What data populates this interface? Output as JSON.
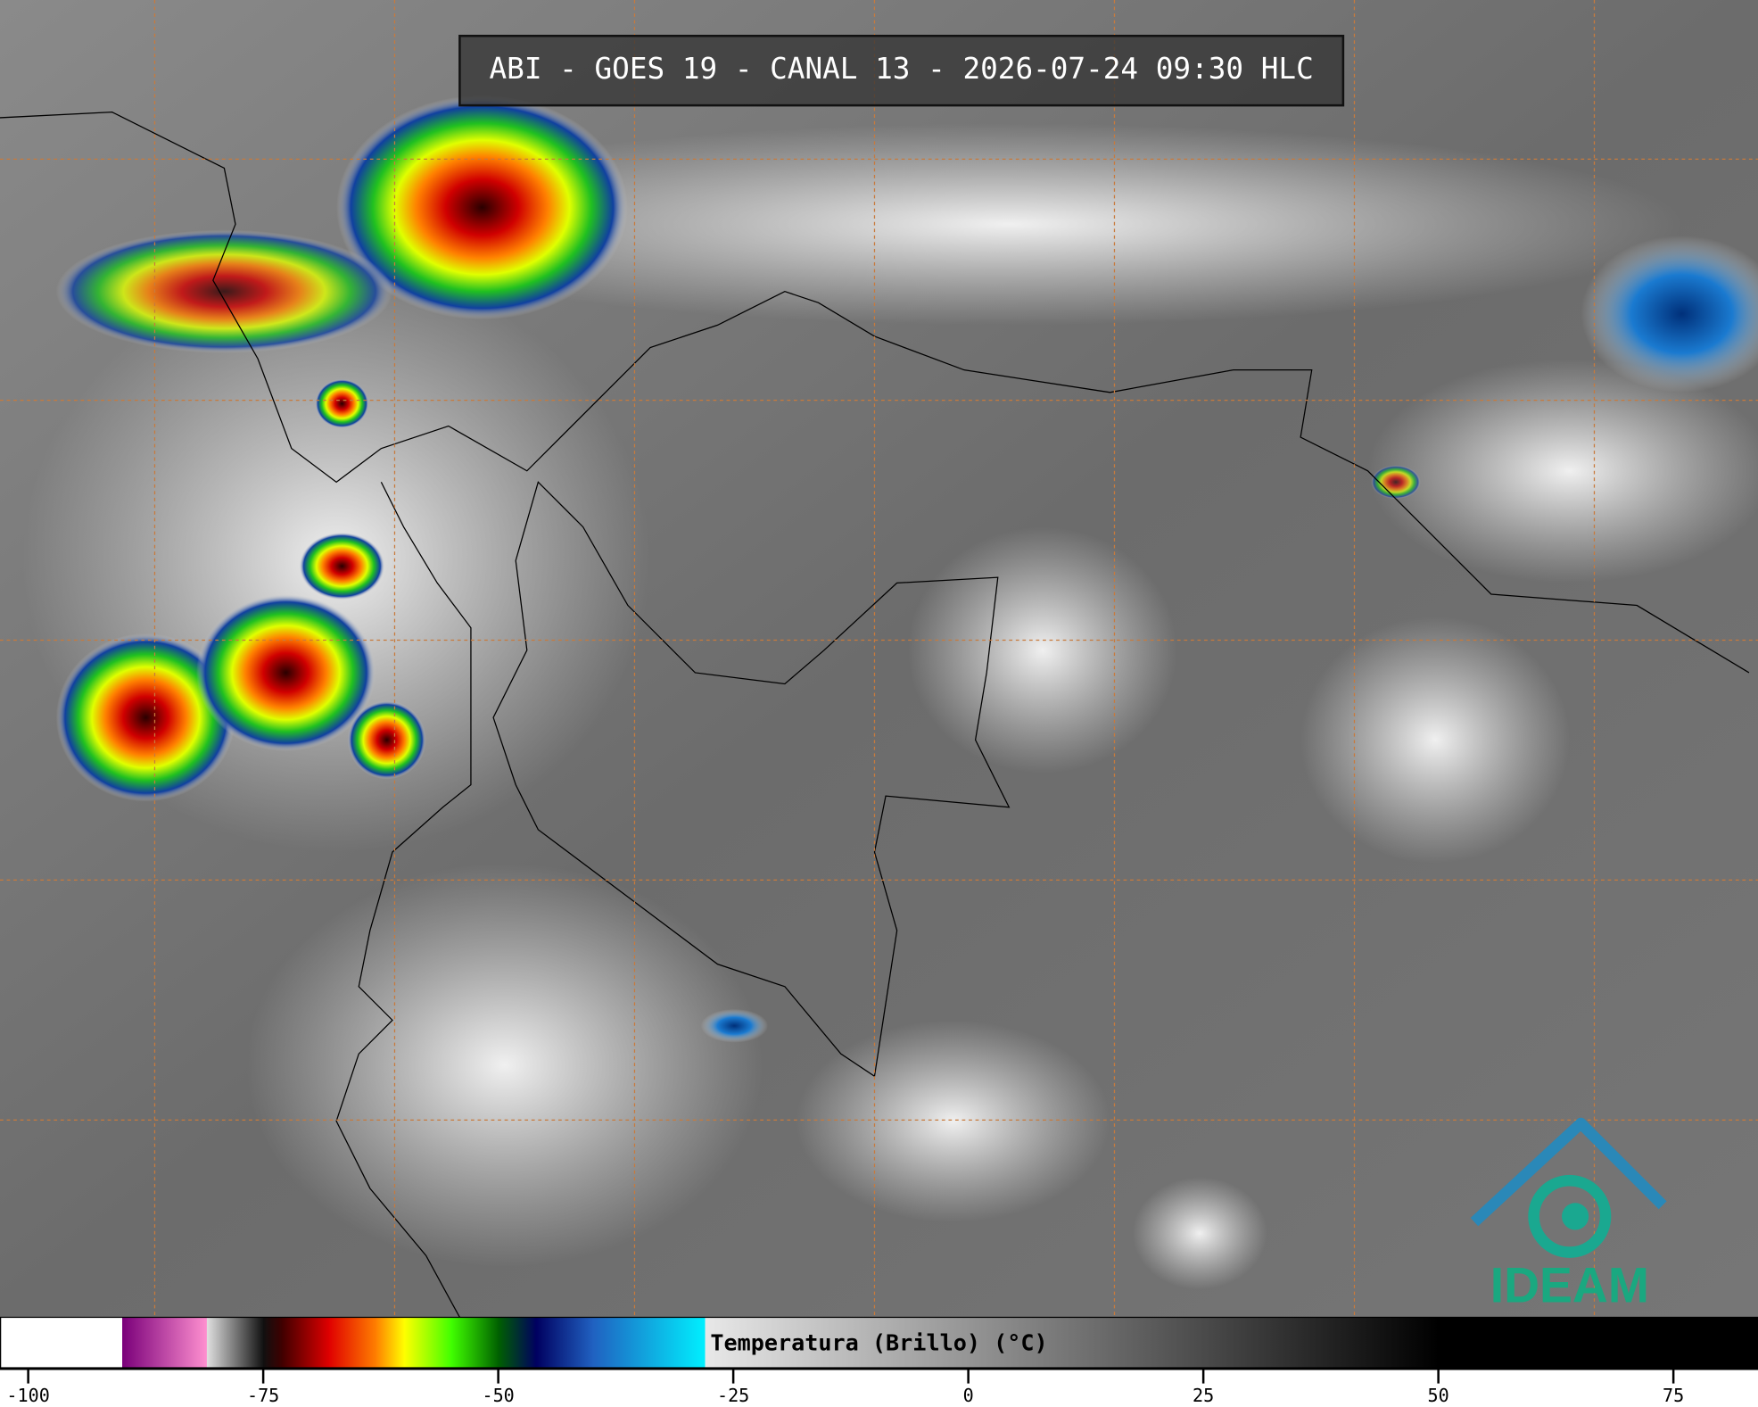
{
  "header": {
    "title": "ABI - GOES 19 - CANAL 13 - 2026-07-24 09:30 HLC"
  },
  "logo": {
    "text": "IDEAM"
  },
  "colorbar": {
    "label": "Temperatura (Brillo) (°C)",
    "xlim": [
      -103,
      84
    ],
    "xticks": [
      -100,
      -75,
      -50,
      -25,
      0,
      25,
      50,
      75
    ],
    "stops": [
      {
        "value": -103,
        "color": "#ffffff"
      },
      {
        "value": -90,
        "color": "#ffffff"
      },
      {
        "value": -90,
        "color": "#7a007a"
      },
      {
        "value": -81,
        "color": "#ff90d0"
      },
      {
        "value": -81,
        "color": "#e0e0e0"
      },
      {
        "value": -75,
        "color": "#101010"
      },
      {
        "value": -73,
        "color": "#400000"
      },
      {
        "value": -68,
        "color": "#e00000"
      },
      {
        "value": -63,
        "color": "#ff8000"
      },
      {
        "value": -60,
        "color": "#ffff00"
      },
      {
        "value": -55,
        "color": "#40ff00"
      },
      {
        "value": -50,
        "color": "#006000"
      },
      {
        "value": -46,
        "color": "#000060"
      },
      {
        "value": -40,
        "color": "#2060c0"
      },
      {
        "value": -28,
        "color": "#00f0ff"
      },
      {
        "value": -28,
        "color": "#e8e8e8"
      },
      {
        "value": 50,
        "color": "#000000"
      },
      {
        "value": 84,
        "color": "#000000"
      }
    ]
  }
}
